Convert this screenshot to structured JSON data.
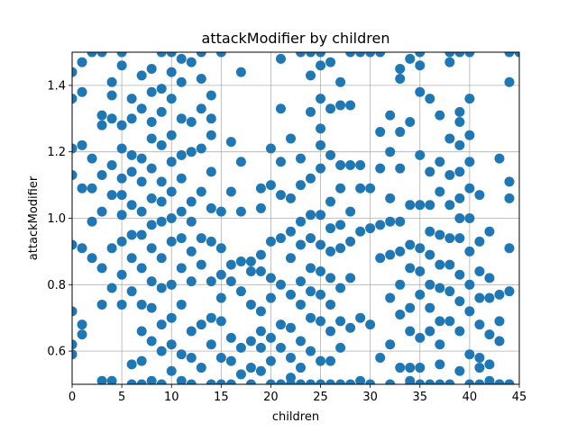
{
  "chart_data": {
    "type": "scatter",
    "title": "attackModifier by children",
    "xlabel": "children",
    "ylabel": "attackModifier",
    "xlim": [
      0,
      45
    ],
    "ylim": [
      0.5,
      1.5
    ],
    "xticks": [
      "0",
      "5",
      "10",
      "15",
      "20",
      "25",
      "30",
      "35",
      "40",
      "45"
    ],
    "yticks": [
      "0.6",
      "0.8",
      "1.0",
      "1.2",
      "1.4"
    ],
    "grid": true,
    "marker_color": "#1f77b4",
    "series": [
      {
        "x": [
          0,
          0,
          0,
          0,
          0,
          0,
          0,
          0,
          1,
          1,
          1,
          1,
          1,
          1,
          1,
          2,
          2,
          2,
          2,
          2,
          3,
          3,
          3,
          3,
          3,
          3,
          3,
          3,
          4,
          4,
          4,
          4,
          4,
          4,
          4,
          4,
          5,
          5,
          5,
          5,
          5,
          5,
          5,
          5,
          5,
          5,
          6,
          6,
          6,
          6,
          6,
          6,
          6,
          6,
          6,
          6,
          7,
          7,
          7,
          7,
          7,
          7,
          7,
          7,
          7,
          7,
          7,
          8,
          8,
          8,
          8,
          8,
          8,
          8,
          8,
          8,
          8,
          8,
          8,
          9,
          9,
          9,
          9,
          9,
          9,
          9,
          9,
          9,
          9,
          9,
          9,
          10,
          10,
          10,
          10,
          10,
          10,
          10,
          10,
          10,
          10,
          10,
          10,
          11,
          11,
          11,
          11,
          11,
          11,
          11,
          11,
          11,
          11,
          11,
          12,
          12,
          12,
          12,
          12,
          12,
          12,
          12,
          12,
          12,
          13,
          13,
          13,
          13,
          13,
          13,
          13,
          13,
          13,
          14,
          14,
          14,
          14,
          14,
          14,
          14,
          14,
          14,
          14,
          15,
          15,
          15,
          15,
          15,
          15,
          15,
          15,
          16,
          16,
          16,
          16,
          16,
          16,
          16,
          17,
          17,
          17,
          17,
          17,
          17,
          17,
          18,
          18,
          18,
          18,
          18,
          18,
          19,
          19,
          19,
          19,
          19,
          19,
          19,
          19,
          20,
          20,
          20,
          20,
          20,
          20,
          20,
          20,
          21,
          21,
          21,
          21,
          21,
          21,
          21,
          21,
          21,
          22,
          22,
          22,
          22,
          22,
          22,
          22,
          22,
          22,
          23,
          23,
          23,
          23,
          23,
          23,
          23,
          23,
          23,
          23,
          24,
          24,
          24,
          24,
          24,
          24,
          24,
          24,
          24,
          24,
          24,
          25,
          25,
          25,
          25,
          25,
          25,
          25,
          25,
          25,
          25,
          25,
          25,
          25,
          26,
          26,
          26,
          26,
          26,
          26,
          26,
          26,
          26,
          26,
          26,
          27,
          27,
          27,
          27,
          27,
          27,
          27,
          27,
          27,
          27,
          28,
          28,
          28,
          28,
          28,
          28,
          28,
          28,
          29,
          29,
          29,
          29,
          29,
          29,
          30,
          30,
          30,
          30,
          30,
          31,
          31,
          31,
          31,
          31,
          31,
          32,
          32,
          32,
          32,
          32,
          32,
          32,
          32,
          33,
          33,
          33,
          33,
          33,
          33,
          33,
          33,
          33,
          34,
          34,
          34,
          34,
          34,
          34,
          34,
          34,
          34,
          34,
          35,
          35,
          35,
          35,
          35,
          35,
          35,
          35,
          35,
          35,
          35,
          36,
          36,
          36,
          36,
          36,
          36,
          36,
          36,
          36,
          37,
          37,
          37,
          37,
          37,
          37,
          37,
          37,
          37,
          37,
          38,
          38,
          38,
          38,
          38,
          38,
          38,
          38,
          38,
          38,
          39,
          39,
          39,
          39,
          39,
          39,
          39,
          39,
          39,
          39,
          39,
          39,
          40,
          40,
          40,
          40,
          40,
          40,
          40,
          40,
          40,
          40,
          40,
          41,
          41,
          41,
          41,
          41,
          41,
          41,
          41,
          42,
          42,
          42,
          42,
          42,
          42,
          42,
          43,
          43,
          43,
          43,
          43,
          43,
          44,
          44,
          44,
          44,
          44,
          44,
          44,
          44,
          45
        ],
        "y": [
          1.44,
          1.36,
          1.21,
          1.13,
          0.92,
          0.72,
          0.62,
          0.59,
          1.47,
          1.38,
          1.22,
          1.09,
          0.91,
          0.68,
          0.65,
          1.5,
          1.18,
          1.09,
          0.99,
          0.88,
          1.5,
          1.31,
          1.28,
          1.13,
          1.02,
          0.85,
          0.74,
          0.51,
          1.41,
          1.37,
          1.3,
          1.16,
          1.07,
          0.91,
          0.79,
          0.51,
          1.5,
          1.46,
          1.28,
          1.21,
          1.12,
          1.07,
          1.01,
          0.93,
          0.83,
          0.74,
          1.36,
          1.3,
          1.19,
          1.14,
          1.04,
          0.95,
          0.88,
          0.78,
          0.56,
          0.5,
          1.43,
          1.33,
          1.18,
          1.11,
          1.02,
          0.95,
          0.85,
          0.74,
          0.66,
          0.57,
          0.5,
          1.45,
          1.38,
          1.29,
          1.24,
          1.15,
          1.06,
          0.98,
          0.91,
          0.81,
          0.73,
          0.63,
          0.51,
          1.5,
          1.39,
          1.32,
          1.22,
          1.11,
          1.05,
          0.99,
          0.88,
          0.79,
          0.68,
          0.6,
          0.5,
          1.5,
          1.44,
          1.36,
          1.25,
          1.17,
          1.08,
          1.0,
          0.93,
          0.8,
          0.7,
          0.62,
          0.54,
          1.48,
          1.41,
          1.3,
          1.19,
          1.12,
          1.02,
          0.94,
          0.85,
          0.74,
          0.59,
          0.51,
          1.47,
          1.29,
          1.2,
          1.05,
          0.99,
          0.9,
          0.81,
          0.66,
          0.58,
          0.5,
          1.5,
          1.42,
          1.33,
          1.21,
          1.08,
          0.94,
          0.86,
          0.68,
          0.55,
          1.37,
          1.3,
          1.25,
          1.14,
          1.03,
          0.93,
          0.81,
          0.7,
          0.62,
          0.5,
          1.5,
          1.02,
          0.91,
          0.83,
          0.76,
          0.69,
          0.58,
          0.5,
          1.23,
          1.08,
          0.86,
          0.81,
          0.64,
          0.57,
          0.5,
          1.44,
          1.17,
          1.02,
          0.87,
          0.78,
          0.61,
          0.53,
          0.87,
          0.84,
          0.74,
          0.63,
          0.55,
          0.5,
          1.09,
          1.03,
          0.89,
          0.84,
          0.72,
          0.66,
          0.61,
          0.54,
          1.21,
          1.1,
          0.93,
          0.82,
          0.76,
          0.64,
          0.57,
          0.5,
          1.48,
          1.33,
          1.17,
          1.07,
          0.94,
          0.8,
          0.68,
          0.61,
          0.5,
          1.24,
          1.06,
          0.96,
          0.88,
          0.77,
          0.67,
          0.58,
          0.52,
          0.5,
          1.5,
          1.18,
          1.1,
          0.99,
          0.92,
          0.81,
          0.74,
          0.63,
          0.55,
          0.5,
          1.5,
          1.43,
          1.32,
          1.12,
          1.01,
          0.94,
          0.85,
          0.78,
          0.7,
          0.6,
          0.5,
          1.5,
          1.46,
          1.36,
          1.27,
          1.22,
          1.15,
          1.01,
          0.92,
          0.84,
          0.77,
          0.69,
          0.57,
          0.5,
          1.47,
          1.33,
          1.19,
          1.05,
          0.97,
          0.9,
          0.82,
          0.74,
          0.66,
          0.57,
          0.5,
          1.41,
          1.34,
          1.16,
          1.09,
          0.98,
          0.91,
          0.79,
          0.69,
          0.61,
          0.5,
          1.5,
          1.34,
          1.16,
          1.02,
          0.93,
          0.82,
          0.67,
          0.5,
          1.5,
          1.16,
          1.09,
          0.96,
          0.7,
          0.51,
          1.5,
          1.09,
          0.97,
          0.68,
          0.5,
          1.5,
          1.26,
          1.15,
          0.98,
          0.88,
          0.58,
          1.31,
          1.2,
          1.06,
          0.99,
          0.89,
          0.76,
          0.62,
          0.5,
          1.45,
          1.42,
          1.26,
          1.15,
          0.99,
          0.9,
          0.8,
          0.71,
          0.55,
          1.48,
          1.29,
          1.04,
          0.92,
          0.85,
          0.73,
          0.66,
          0.55,
          0.51,
          0.5,
          1.5,
          1.46,
          1.38,
          1.19,
          1.04,
          0.91,
          0.84,
          0.77,
          0.64,
          0.55,
          0.5,
          1.36,
          1.14,
          1.04,
          0.96,
          0.89,
          0.8,
          0.73,
          0.66,
          0.5,
          1.31,
          1.17,
          1.08,
          0.95,
          0.86,
          0.79,
          0.69,
          0.62,
          0.56,
          0.5,
          1.5,
          1.47,
          1.24,
          1.13,
          1.04,
          0.94,
          0.86,
          0.78,
          0.69,
          0.5,
          1.5,
          1.32,
          1.29,
          1.22,
          1.14,
          1.06,
          1.0,
          0.94,
          0.83,
          0.75,
          0.66,
          0.54,
          1.5,
          1.36,
          1.25,
          1.17,
          1.09,
          1.0,
          0.9,
          0.8,
          0.72,
          0.59,
          0.5,
          1.07,
          0.93,
          0.84,
          0.76,
          0.68,
          0.58,
          0.55,
          0.5,
          0.96,
          0.82,
          0.76,
          0.65,
          0.56,
          0.51,
          0.5,
          1.18,
          0.77,
          0.69,
          0.63,
          0.5,
          0.5,
          1.5,
          1.41,
          1.11,
          1.06,
          0.91,
          0.78,
          0.5,
          0.5,
          1.5
        ]
      }
    ]
  }
}
